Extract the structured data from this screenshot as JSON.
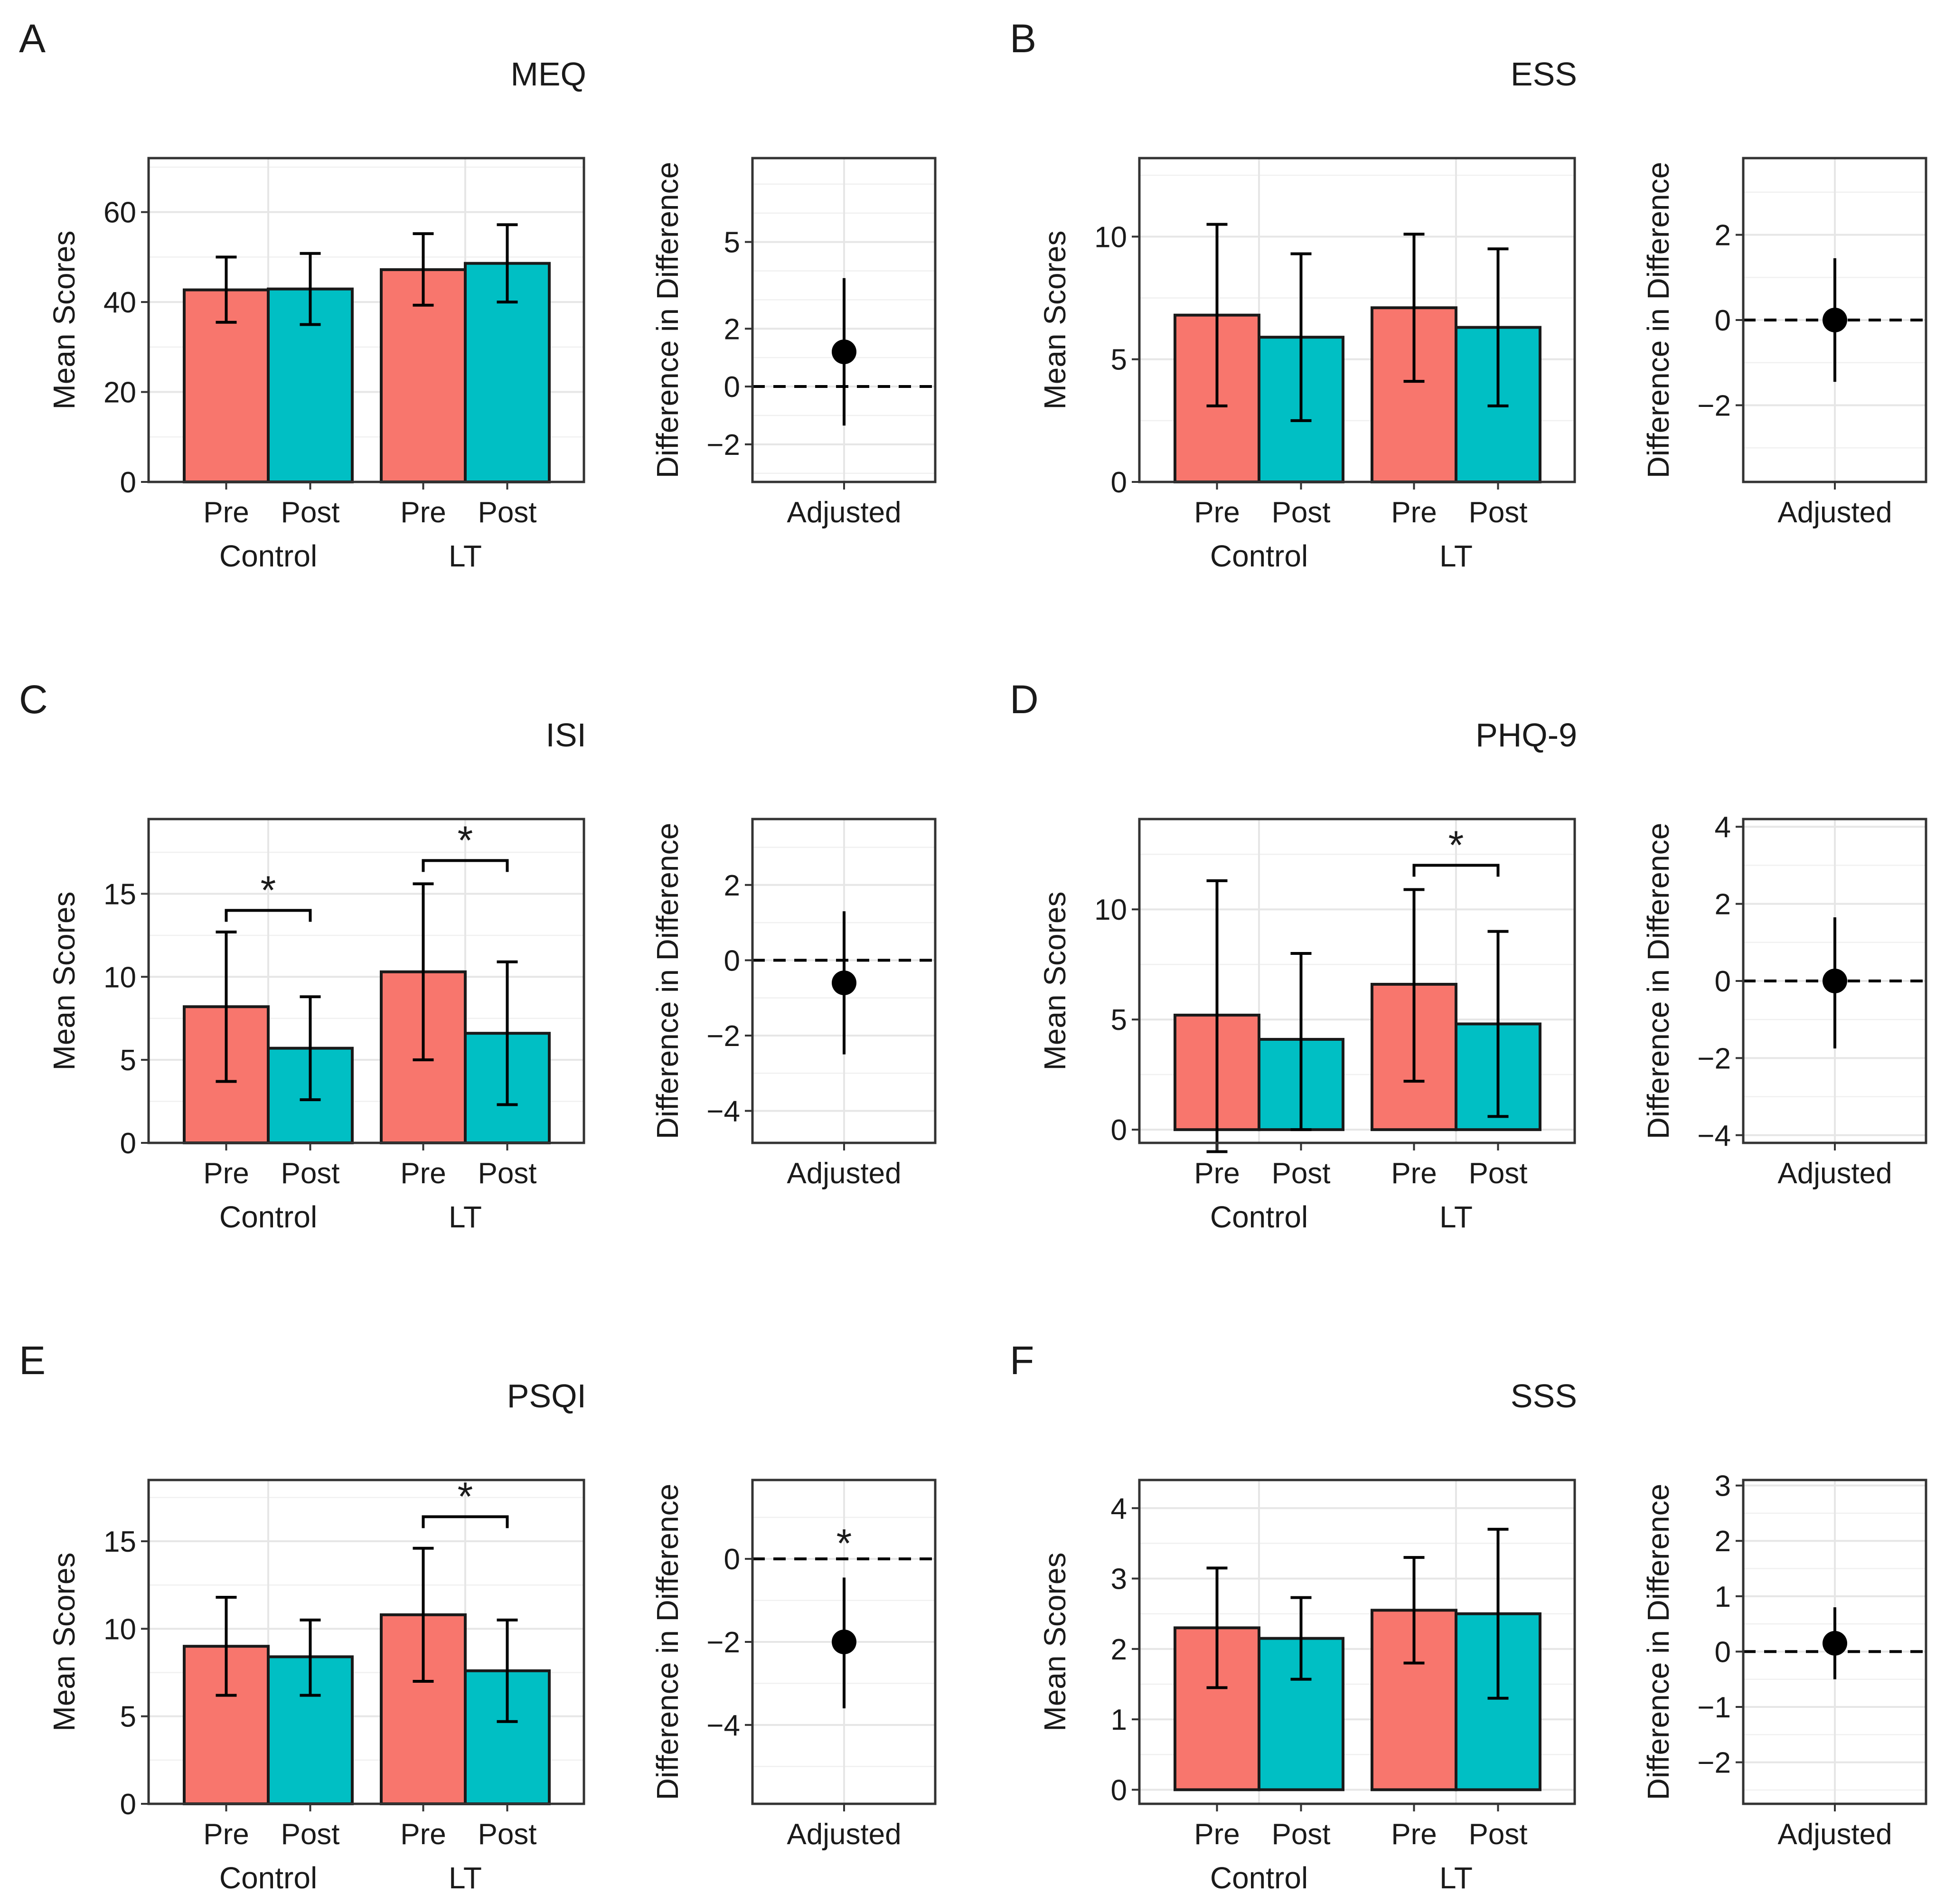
{
  "figure": {
    "colors": {
      "pre": "#F8766D",
      "post": "#00BFC4"
    },
    "bar_axis_title": "Mean Scores",
    "did_axis_title": "Difference in Difference",
    "did_category": "Adjusted",
    "groups": [
      "Control",
      "LT"
    ],
    "timepoints": [
      "Pre",
      "Post"
    ]
  },
  "chart_data": [
    {
      "panel": "A",
      "title": "MEQ",
      "bars": {
        "type": "bar",
        "xlabel": "",
        "ylabel": "Mean Scores",
        "ylim": [
          0,
          72
        ],
        "yticks": [
          0,
          20,
          40,
          60
        ],
        "groups": [
          "Control",
          "LT"
        ],
        "categories": [
          "Pre",
          "Post"
        ],
        "series": [
          {
            "name": "Pre",
            "values": [
              42.7,
              47.2
            ],
            "err_low": [
              35.5,
              39.3
            ],
            "err_high": [
              50.0,
              55.2
            ]
          },
          {
            "name": "Post",
            "values": [
              42.9,
              48.6
            ],
            "err_low": [
              35.0,
              40.0
            ],
            "err_high": [
              50.8,
              57.2
            ]
          }
        ],
        "significant_pairs": []
      },
      "did": {
        "type": "scatter",
        "category": "Adjusted",
        "ylabel": "Difference in Difference",
        "ylim": [
          -3.3,
          7.9
        ],
        "yticks": [
          -2,
          0,
          2,
          5
        ],
        "estimate": 1.2,
        "ci": [
          -1.35,
          3.75
        ],
        "significant": false
      }
    },
    {
      "panel": "B",
      "title": "ESS",
      "bars": {
        "type": "bar",
        "xlabel": "",
        "ylabel": "Mean Scores",
        "ylim": [
          0,
          13.2
        ],
        "yticks": [
          0,
          5,
          10
        ],
        "groups": [
          "Control",
          "LT"
        ],
        "categories": [
          "Pre",
          "Post"
        ],
        "series": [
          {
            "name": "Pre",
            "values": [
              6.8,
              7.1
            ],
            "err_low": [
              3.1,
              4.1
            ],
            "err_high": [
              10.5,
              10.1
            ]
          },
          {
            "name": "Post",
            "values": [
              5.9,
              6.3
            ],
            "err_low": [
              2.5,
              3.1
            ],
            "err_high": [
              9.3,
              9.5
            ]
          }
        ],
        "significant_pairs": []
      },
      "did": {
        "type": "scatter",
        "category": "Adjusted",
        "ylabel": "Difference in Difference",
        "ylim": [
          -3.8,
          3.8
        ],
        "yticks": [
          -2,
          0,
          2
        ],
        "estimate": 0.0,
        "ci": [
          -1.45,
          1.45
        ],
        "significant": false
      }
    },
    {
      "panel": "C",
      "title": "ISI",
      "bars": {
        "type": "bar",
        "xlabel": "",
        "ylabel": "Mean Scores",
        "ylim": [
          0,
          19.5
        ],
        "yticks": [
          0,
          5,
          10,
          15
        ],
        "groups": [
          "Control",
          "LT"
        ],
        "categories": [
          "Pre",
          "Post"
        ],
        "series": [
          {
            "name": "Pre",
            "values": [
              8.2,
              10.3
            ],
            "err_low": [
              3.7,
              5.0
            ],
            "err_high": [
              12.7,
              15.6
            ]
          },
          {
            "name": "Post",
            "values": [
              5.7,
              6.6
            ],
            "err_low": [
              2.6,
              2.3
            ],
            "err_high": [
              8.8,
              10.9
            ]
          }
        ],
        "significant_pairs": [
          {
            "group": "Control",
            "label": "*",
            "y": 14.0
          },
          {
            "group": "LT",
            "label": "*",
            "y": 17.0
          }
        ]
      },
      "did": {
        "type": "scatter",
        "category": "Adjusted",
        "ylabel": "Difference in Difference",
        "ylim": [
          -4.85,
          3.75
        ],
        "yticks": [
          -4,
          -2,
          0,
          2
        ],
        "estimate": -0.6,
        "ci": [
          -2.5,
          1.3
        ],
        "significant": false
      }
    },
    {
      "panel": "D",
      "title": "PHQ-9",
      "bars": {
        "type": "bar",
        "xlabel": "",
        "ylabel": "Mean Scores",
        "ylim": [
          -0.6,
          14.1
        ],
        "yticks": [
          0,
          5,
          10
        ],
        "groups": [
          "Control",
          "LT"
        ],
        "categories": [
          "Pre",
          "Post"
        ],
        "series": [
          {
            "name": "Pre",
            "values": [
              5.2,
              6.6
            ],
            "err_low": [
              -1.0,
              2.2
            ],
            "err_high": [
              11.3,
              10.9
            ]
          },
          {
            "name": "Post",
            "values": [
              4.1,
              4.8
            ],
            "err_low": [
              0.0,
              0.6
            ],
            "err_high": [
              8.0,
              9.0
            ]
          }
        ],
        "significant_pairs": [
          {
            "group": "LT",
            "label": "*",
            "y": 12.0
          }
        ]
      },
      "did": {
        "type": "scatter",
        "category": "Adjusted",
        "ylabel": "Difference in Difference",
        "ylim": [
          -4.2,
          4.2
        ],
        "yticks": [
          -4,
          -2,
          0,
          2,
          4
        ],
        "estimate": 0.0,
        "ci": [
          -1.75,
          1.65
        ],
        "significant": false
      }
    },
    {
      "panel": "E",
      "title": "PSQI",
      "bars": {
        "type": "bar",
        "xlabel": "",
        "ylabel": "Mean Scores",
        "ylim": [
          0,
          18.5
        ],
        "yticks": [
          0,
          5,
          10,
          15
        ],
        "groups": [
          "Control",
          "LT"
        ],
        "categories": [
          "Pre",
          "Post"
        ],
        "series": [
          {
            "name": "Pre",
            "values": [
              9.0,
              10.8
            ],
            "err_low": [
              6.2,
              7.0
            ],
            "err_high": [
              11.8,
              14.6
            ]
          },
          {
            "name": "Post",
            "values": [
              8.4,
              7.6
            ],
            "err_low": [
              6.2,
              4.7
            ],
            "err_high": [
              10.5,
              10.5
            ]
          }
        ],
        "significant_pairs": [
          {
            "group": "LT",
            "label": "*",
            "y": 16.4
          }
        ]
      },
      "did": {
        "type": "scatter",
        "category": "Adjusted",
        "ylabel": "Difference in Difference",
        "ylim": [
          -5.9,
          1.9
        ],
        "yticks": [
          -4,
          -2,
          0
        ],
        "estimate": -2.0,
        "ci": [
          -3.6,
          -0.45
        ],
        "significant": true,
        "significance_label": "*"
      }
    },
    {
      "panel": "F",
      "title": "SSS",
      "bars": {
        "type": "bar",
        "xlabel": "",
        "ylabel": "Mean Scores",
        "ylim": [
          -0.2,
          4.4
        ],
        "yticks": [
          0,
          1,
          2,
          3,
          4
        ],
        "groups": [
          "Control",
          "LT"
        ],
        "categories": [
          "Pre",
          "Post"
        ],
        "series": [
          {
            "name": "Pre",
            "values": [
              2.3,
              2.55
            ],
            "err_low": [
              1.45,
              1.8
            ],
            "err_high": [
              3.15,
              3.3
            ]
          },
          {
            "name": "Post",
            "values": [
              2.15,
              2.5
            ],
            "err_low": [
              1.57,
              1.3
            ],
            "err_high": [
              2.73,
              3.7
            ]
          }
        ],
        "significant_pairs": []
      },
      "did": {
        "type": "scatter",
        "category": "Adjusted",
        "ylabel": "Difference in Difference",
        "ylim": [
          -2.75,
          3.1
        ],
        "yticks": [
          -2,
          -1,
          0,
          1,
          2,
          3
        ],
        "estimate": 0.15,
        "ci": [
          -0.5,
          0.8
        ],
        "significant": false
      }
    }
  ]
}
